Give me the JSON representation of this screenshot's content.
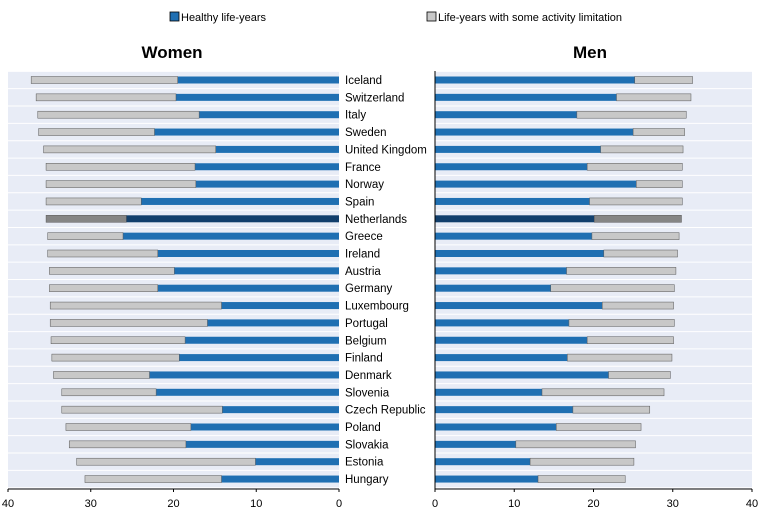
{
  "chart_data": {
    "type": "bar",
    "orientation": "horizontal",
    "stacked": true,
    "legend": {
      "placement": "top",
      "items": [
        {
          "label": "Healthy life-years",
          "color": "#1f6fb2"
        },
        {
          "label": "Life-years with some activity limitation",
          "color": "#c8c8c8"
        }
      ]
    },
    "highlight": {
      "category": "Netherlands",
      "colors": [
        "#123f6c",
        "#858585"
      ]
    },
    "categories": [
      "Iceland",
      "Switzerland",
      "Italy",
      "Sweden",
      "United Kingdom",
      "France",
      "Norway",
      "Spain",
      "Netherlands",
      "Greece",
      "Ireland",
      "Austria",
      "Germany",
      "Luxembourg",
      "Portugal",
      "Belgium",
      "Finland",
      "Denmark",
      "Slovenia",
      "Czech Republic",
      "Poland",
      "Slovakia",
      "Estonia",
      "Hungary"
    ],
    "panels": [
      {
        "title": "Women",
        "direction": "left",
        "xlim": [
          0,
          40
        ],
        "ticks": [
          40,
          30,
          20,
          10,
          0
        ],
        "grid": true,
        "series": [
          {
            "name": "Healthy life-years",
            "values": [
              19.5,
              19.7,
              16.9,
              22.3,
              14.9,
              17.4,
              17.3,
              23.9,
              25.7,
              26.1,
              21.9,
              19.9,
              21.9,
              14.2,
              15.9,
              18.6,
              19.3,
              22.9,
              22.1,
              14.1,
              17.9,
              18.5,
              10.1,
              14.2
            ]
          },
          {
            "name": "Life-years with some activity limitation",
            "values": [
              17.7,
              16.9,
              19.5,
              14.0,
              20.8,
              18.0,
              18.1,
              11.5,
              9.7,
              9.1,
              13.3,
              15.1,
              13.1,
              20.7,
              19.0,
              16.2,
              15.4,
              11.6,
              11.4,
              19.4,
              15.1,
              14.1,
              21.6,
              16.5
            ]
          }
        ]
      },
      {
        "title": "Men",
        "direction": "right",
        "xlim": [
          0,
          40
        ],
        "ticks": [
          0,
          10,
          20,
          30,
          40
        ],
        "grid": true,
        "series": [
          {
            "name": "Healthy life-years",
            "values": [
              25.2,
              22.9,
              17.9,
              25.0,
              20.9,
              19.2,
              25.4,
              19.5,
              20.1,
              19.8,
              21.3,
              16.6,
              14.6,
              21.1,
              16.9,
              19.2,
              16.7,
              21.9,
              13.5,
              17.4,
              15.3,
              10.2,
              12.0,
              13.0
            ]
          },
          {
            "name": "Life-years with some activity limitation",
            "values": [
              7.3,
              9.4,
              13.8,
              6.5,
              10.4,
              12.0,
              5.8,
              11.7,
              11.0,
              11.0,
              9.3,
              13.8,
              15.6,
              9.0,
              13.3,
              10.9,
              13.2,
              7.8,
              15.4,
              9.7,
              10.7,
              15.1,
              13.1,
              11.0
            ]
          }
        ]
      }
    ]
  }
}
